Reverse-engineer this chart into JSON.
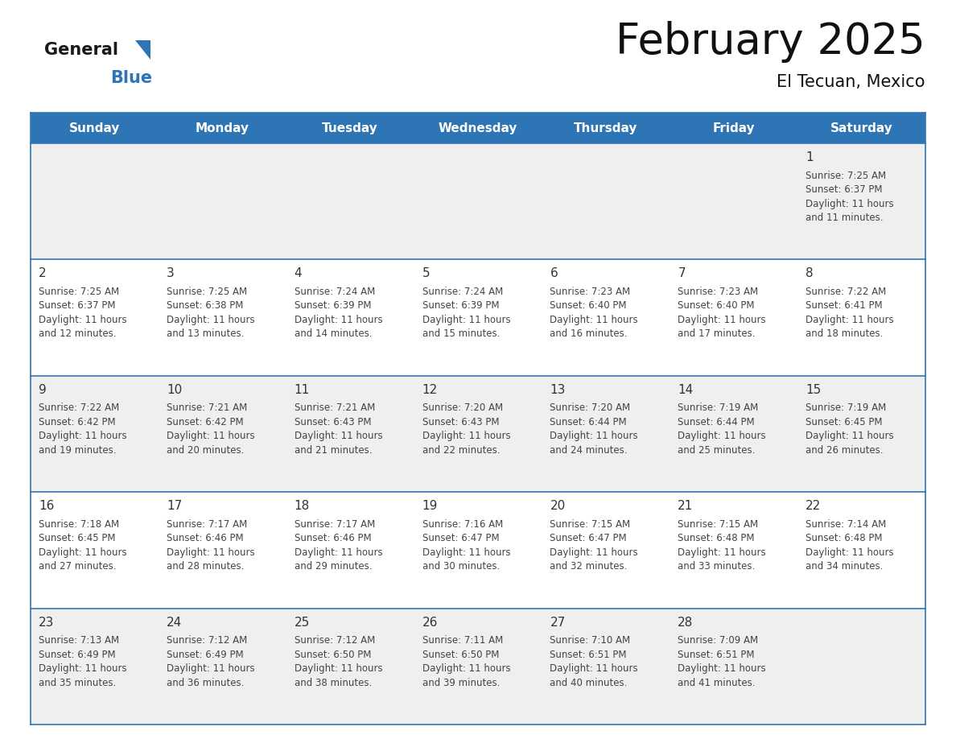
{
  "title": "February 2025",
  "subtitle": "El Tecuan, Mexico",
  "header_bg": "#2E75B6",
  "header_text_color": "#FFFFFF",
  "day_names": [
    "Sunday",
    "Monday",
    "Tuesday",
    "Wednesday",
    "Thursday",
    "Friday",
    "Saturday"
  ],
  "row1_bg": "#EFEFEF",
  "row2_bg": "#FFFFFF",
  "cell_border_color": "#2E75B6",
  "day_number_color": "#333333",
  "info_text_color": "#444444",
  "calendar": [
    [
      null,
      null,
      null,
      null,
      null,
      null,
      {
        "day": "1",
        "sunrise": "7:25 AM",
        "sunset": "6:37 PM",
        "daylight_l1": "Daylight: 11 hours",
        "daylight_l2": "and 11 minutes."
      }
    ],
    [
      {
        "day": "2",
        "sunrise": "7:25 AM",
        "sunset": "6:37 PM",
        "daylight_l1": "Daylight: 11 hours",
        "daylight_l2": "and 12 minutes."
      },
      {
        "day": "3",
        "sunrise": "7:25 AM",
        "sunset": "6:38 PM",
        "daylight_l1": "Daylight: 11 hours",
        "daylight_l2": "and 13 minutes."
      },
      {
        "day": "4",
        "sunrise": "7:24 AM",
        "sunset": "6:39 PM",
        "daylight_l1": "Daylight: 11 hours",
        "daylight_l2": "and 14 minutes."
      },
      {
        "day": "5",
        "sunrise": "7:24 AM",
        "sunset": "6:39 PM",
        "daylight_l1": "Daylight: 11 hours",
        "daylight_l2": "and 15 minutes."
      },
      {
        "day": "6",
        "sunrise": "7:23 AM",
        "sunset": "6:40 PM",
        "daylight_l1": "Daylight: 11 hours",
        "daylight_l2": "and 16 minutes."
      },
      {
        "day": "7",
        "sunrise": "7:23 AM",
        "sunset": "6:40 PM",
        "daylight_l1": "Daylight: 11 hours",
        "daylight_l2": "and 17 minutes."
      },
      {
        "day": "8",
        "sunrise": "7:22 AM",
        "sunset": "6:41 PM",
        "daylight_l1": "Daylight: 11 hours",
        "daylight_l2": "and 18 minutes."
      }
    ],
    [
      {
        "day": "9",
        "sunrise": "7:22 AM",
        "sunset": "6:42 PM",
        "daylight_l1": "Daylight: 11 hours",
        "daylight_l2": "and 19 minutes."
      },
      {
        "day": "10",
        "sunrise": "7:21 AM",
        "sunset": "6:42 PM",
        "daylight_l1": "Daylight: 11 hours",
        "daylight_l2": "and 20 minutes."
      },
      {
        "day": "11",
        "sunrise": "7:21 AM",
        "sunset": "6:43 PM",
        "daylight_l1": "Daylight: 11 hours",
        "daylight_l2": "and 21 minutes."
      },
      {
        "day": "12",
        "sunrise": "7:20 AM",
        "sunset": "6:43 PM",
        "daylight_l1": "Daylight: 11 hours",
        "daylight_l2": "and 22 minutes."
      },
      {
        "day": "13",
        "sunrise": "7:20 AM",
        "sunset": "6:44 PM",
        "daylight_l1": "Daylight: 11 hours",
        "daylight_l2": "and 24 minutes."
      },
      {
        "day": "14",
        "sunrise": "7:19 AM",
        "sunset": "6:44 PM",
        "daylight_l1": "Daylight: 11 hours",
        "daylight_l2": "and 25 minutes."
      },
      {
        "day": "15",
        "sunrise": "7:19 AM",
        "sunset": "6:45 PM",
        "daylight_l1": "Daylight: 11 hours",
        "daylight_l2": "and 26 minutes."
      }
    ],
    [
      {
        "day": "16",
        "sunrise": "7:18 AM",
        "sunset": "6:45 PM",
        "daylight_l1": "Daylight: 11 hours",
        "daylight_l2": "and 27 minutes."
      },
      {
        "day": "17",
        "sunrise": "7:17 AM",
        "sunset": "6:46 PM",
        "daylight_l1": "Daylight: 11 hours",
        "daylight_l2": "and 28 minutes."
      },
      {
        "day": "18",
        "sunrise": "7:17 AM",
        "sunset": "6:46 PM",
        "daylight_l1": "Daylight: 11 hours",
        "daylight_l2": "and 29 minutes."
      },
      {
        "day": "19",
        "sunrise": "7:16 AM",
        "sunset": "6:47 PM",
        "daylight_l1": "Daylight: 11 hours",
        "daylight_l2": "and 30 minutes."
      },
      {
        "day": "20",
        "sunrise": "7:15 AM",
        "sunset": "6:47 PM",
        "daylight_l1": "Daylight: 11 hours",
        "daylight_l2": "and 32 minutes."
      },
      {
        "day": "21",
        "sunrise": "7:15 AM",
        "sunset": "6:48 PM",
        "daylight_l1": "Daylight: 11 hours",
        "daylight_l2": "and 33 minutes."
      },
      {
        "day": "22",
        "sunrise": "7:14 AM",
        "sunset": "6:48 PM",
        "daylight_l1": "Daylight: 11 hours",
        "daylight_l2": "and 34 minutes."
      }
    ],
    [
      {
        "day": "23",
        "sunrise": "7:13 AM",
        "sunset": "6:49 PM",
        "daylight_l1": "Daylight: 11 hours",
        "daylight_l2": "and 35 minutes."
      },
      {
        "day": "24",
        "sunrise": "7:12 AM",
        "sunset": "6:49 PM",
        "daylight_l1": "Daylight: 11 hours",
        "daylight_l2": "and 36 minutes."
      },
      {
        "day": "25",
        "sunrise": "7:12 AM",
        "sunset": "6:50 PM",
        "daylight_l1": "Daylight: 11 hours",
        "daylight_l2": "and 38 minutes."
      },
      {
        "day": "26",
        "sunrise": "7:11 AM",
        "sunset": "6:50 PM",
        "daylight_l1": "Daylight: 11 hours",
        "daylight_l2": "and 39 minutes."
      },
      {
        "day": "27",
        "sunrise": "7:10 AM",
        "sunset": "6:51 PM",
        "daylight_l1": "Daylight: 11 hours",
        "daylight_l2": "and 40 minutes."
      },
      {
        "day": "28",
        "sunrise": "7:09 AM",
        "sunset": "6:51 PM",
        "daylight_l1": "Daylight: 11 hours",
        "daylight_l2": "and 41 minutes."
      },
      null
    ]
  ],
  "logo_general_color": "#1a1a1a",
  "logo_blue_color": "#2E75B6",
  "fig_width": 11.88,
  "fig_height": 9.18,
  "title_fontsize": 38,
  "subtitle_fontsize": 15,
  "header_fontsize": 11,
  "daynum_fontsize": 11,
  "info_fontsize": 8.5
}
